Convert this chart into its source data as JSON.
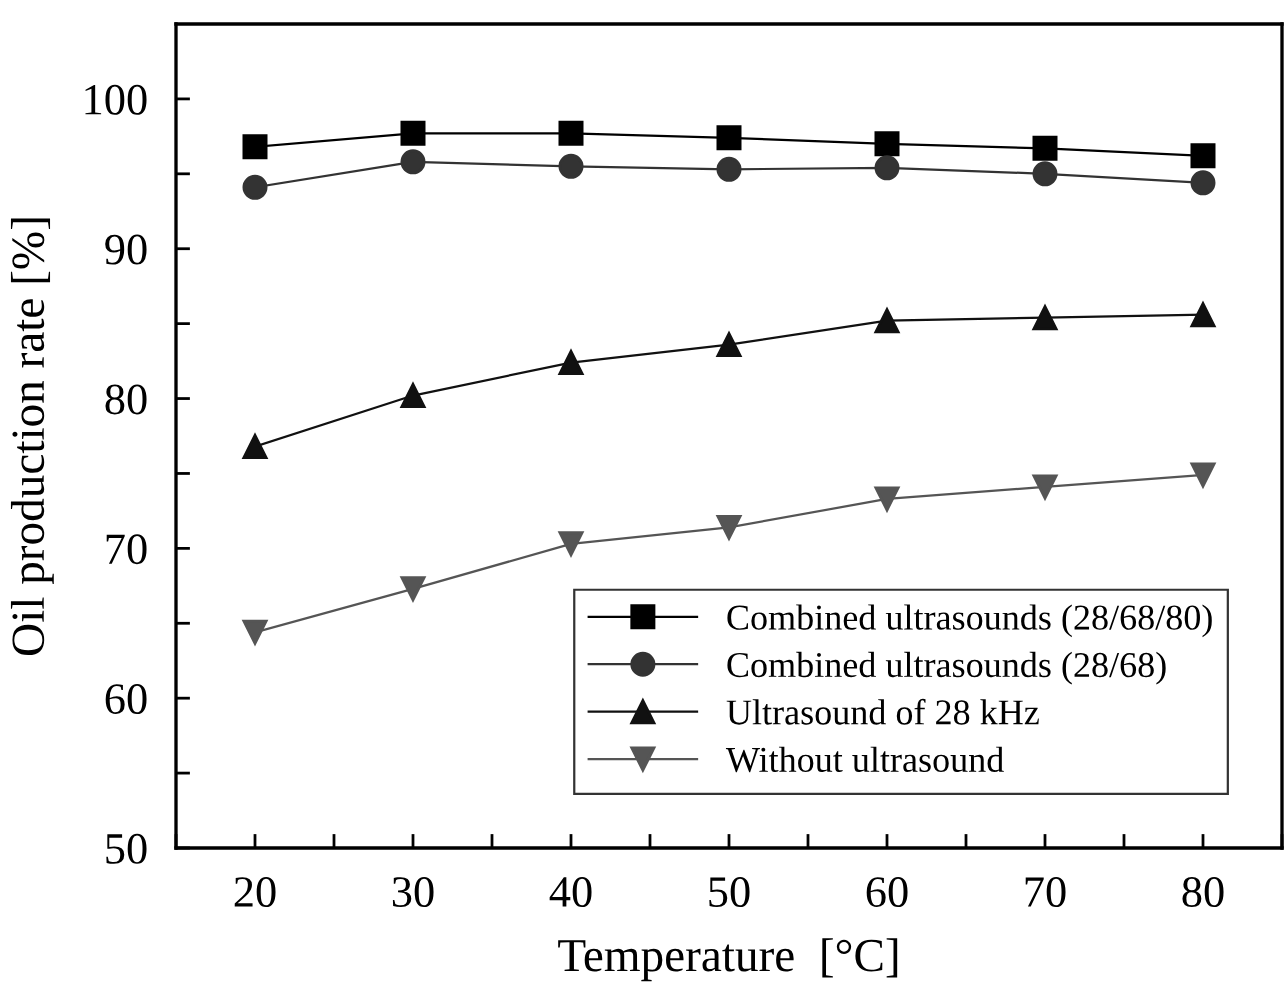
{
  "chart_data": {
    "type": "line",
    "xlabel": "Temperature  [°C]",
    "ylabel": "Oil production rate [%]",
    "x": [
      20,
      30,
      40,
      50,
      60,
      70,
      80
    ],
    "xlim": [
      15,
      85
    ],
    "xticks": [
      {
        "value": 15,
        "label": null
      },
      20,
      {
        "value": 25,
        "label": null
      },
      30,
      {
        "value": 35,
        "label": null
      },
      40,
      {
        "value": 45,
        "label": null
      },
      50,
      {
        "value": 55,
        "label": null
      },
      60,
      {
        "value": 65,
        "label": null
      },
      70,
      {
        "value": 75,
        "label": null
      },
      80,
      {
        "value": 85,
        "label": null
      }
    ],
    "ylim": [
      50,
      105
    ],
    "yticks": [
      50,
      {
        "value": 55,
        "label": null
      },
      60,
      {
        "value": 65,
        "label": null
      },
      70,
      {
        "value": 75,
        "label": null
      },
      80,
      {
        "value": 85,
        "label": null
      },
      90,
      {
        "value": 95,
        "label": null
      },
      100
    ],
    "grid": false,
    "legend": "bottom right",
    "series": [
      {
        "name": "Combined ultrasounds (28/68/80)",
        "color": "#000000",
        "marker": "square",
        "values": [
          96.8,
          97.7,
          97.7,
          97.4,
          97.0,
          96.7,
          96.2
        ]
      },
      {
        "name": "Combined ultrasounds (28/68)",
        "color": "#333333",
        "marker": "circle",
        "values": [
          94.1,
          95.8,
          95.5,
          95.3,
          95.4,
          95.0,
          94.4
        ]
      },
      {
        "name": "Ultrasound of 28 kHz",
        "color": "#111111",
        "marker": "triangle",
        "values": [
          76.8,
          80.2,
          82.4,
          83.6,
          85.2,
          85.4,
          85.6
        ]
      },
      {
        "name": "Without ultrasound",
        "color": "#555555",
        "marker": "triangle_down",
        "values": [
          64.4,
          67.3,
          70.3,
          71.4,
          73.3,
          74.1,
          74.9
        ]
      }
    ]
  }
}
